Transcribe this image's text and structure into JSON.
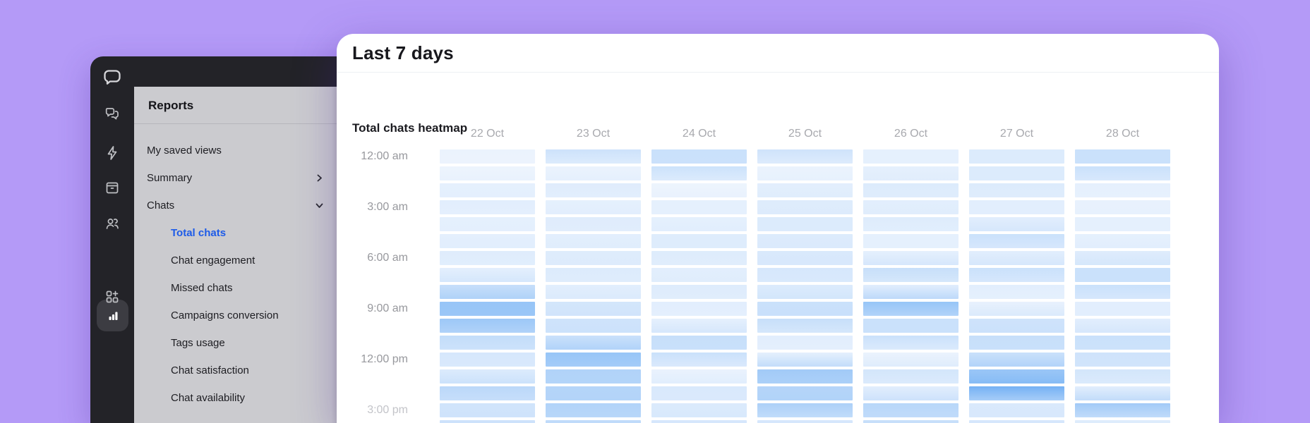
{
  "colors": {
    "background": "#b49af7",
    "app_chrome": "#232328",
    "panel": "#cbcbcf",
    "active_link": "#1d5be8",
    "heatmap_low": "#f4f8fe",
    "heatmap_high": "#5ea5f2"
  },
  "sidebar": {
    "icons": [
      {
        "name": "livechat-logo-icon"
      },
      {
        "name": "chats-icon"
      },
      {
        "name": "automation-lightning-icon"
      },
      {
        "name": "archives-icon"
      },
      {
        "name": "team-icon"
      },
      {
        "name": "reports-bar-chart-icon",
        "active": true
      },
      {
        "name": "apps-plus-icon"
      }
    ]
  },
  "reports_panel": {
    "title": "Reports",
    "items": [
      {
        "label": "My saved views",
        "chevron": "none"
      },
      {
        "label": "Summary",
        "chevron": "right"
      },
      {
        "label": "Chats",
        "chevron": "down"
      }
    ],
    "sub_items": [
      {
        "label": "Total chats",
        "active": true
      },
      {
        "label": "Chat engagement",
        "active": false
      },
      {
        "label": "Missed chats",
        "active": false
      },
      {
        "label": "Campaigns conversion",
        "active": false
      },
      {
        "label": "Tags usage",
        "active": false
      },
      {
        "label": "Chat satisfaction",
        "active": false
      },
      {
        "label": "Chat availability",
        "active": false
      }
    ]
  },
  "card": {
    "title": "Last 7 days",
    "section_title": "Total chats heatmap"
  },
  "chart_data": {
    "type": "heatmap",
    "title": "Total chats heatmap",
    "x_labels": [
      "22 Oct",
      "23 Oct",
      "24 Oct",
      "25 Oct",
      "26 Oct",
      "27 Oct",
      "28 Oct"
    ],
    "y_tick_labels": [
      {
        "label": "12:00 am",
        "row": 0,
        "muted": false
      },
      {
        "label": "3:00 am",
        "row": 3,
        "muted": false
      },
      {
        "label": "6:00 am",
        "row": 6,
        "muted": false
      },
      {
        "label": "9:00 am",
        "row": 9,
        "muted": false
      },
      {
        "label": "12:00 pm",
        "row": 12,
        "muted": false
      },
      {
        "label": "3:00 pm",
        "row": 15,
        "muted": true
      }
    ],
    "rows_visible": 17,
    "row_unit": "1 hour per row starting 12:00 am",
    "legend_position": "none",
    "grid": false,
    "intensity_scale": {
      "low_color": "#f4f8fe",
      "high_color": "#5ea5f2",
      "min": 0,
      "max": 1
    },
    "series": [
      {
        "date": "22 Oct",
        "values": [
          0.06,
          0.05,
          0.1,
          0.12,
          0.1,
          0.11,
          0.14,
          0.11,
          0.3,
          0.62,
          0.58,
          0.33,
          0.2,
          0.16,
          0.38,
          0.24,
          0.26
        ]
      },
      {
        "date": "23 Oct",
        "values": [
          0.26,
          0.06,
          0.14,
          0.1,
          0.14,
          0.12,
          0.15,
          0.16,
          0.12,
          0.22,
          0.25,
          0.28,
          0.62,
          0.45,
          0.42,
          0.45,
          0.35
        ]
      },
      {
        "date": "24 Oct",
        "values": [
          0.28,
          0.27,
          0.05,
          0.1,
          0.1,
          0.15,
          0.15,
          0.12,
          0.15,
          0.12,
          0.1,
          0.3,
          0.28,
          0.07,
          0.18,
          0.17,
          0.2
        ]
      },
      {
        "date": "25 Oct",
        "values": [
          0.25,
          0.06,
          0.12,
          0.15,
          0.16,
          0.16,
          0.18,
          0.2,
          0.16,
          0.28,
          0.3,
          0.12,
          0.1,
          0.55,
          0.42,
          0.48,
          0.2
        ]
      },
      {
        "date": "26 Oct",
        "values": [
          0.1,
          0.1,
          0.16,
          0.12,
          0.15,
          0.1,
          0.1,
          0.3,
          0.12,
          0.62,
          0.28,
          0.28,
          0.06,
          0.22,
          0.12,
          0.4,
          0.3
        ]
      },
      {
        "date": "27 Oct",
        "values": [
          0.16,
          0.16,
          0.16,
          0.12,
          0.12,
          0.28,
          0.12,
          0.28,
          0.12,
          0.08,
          0.25,
          0.3,
          0.28,
          0.6,
          0.85,
          0.18,
          0.2
        ]
      },
      {
        "date": "28 Oct",
        "values": [
          0.28,
          0.28,
          0.1,
          0.08,
          0.1,
          0.1,
          0.14,
          0.28,
          0.28,
          0.12,
          0.12,
          0.28,
          0.25,
          0.22,
          0.12,
          0.55,
          0.15
        ]
      }
    ]
  }
}
